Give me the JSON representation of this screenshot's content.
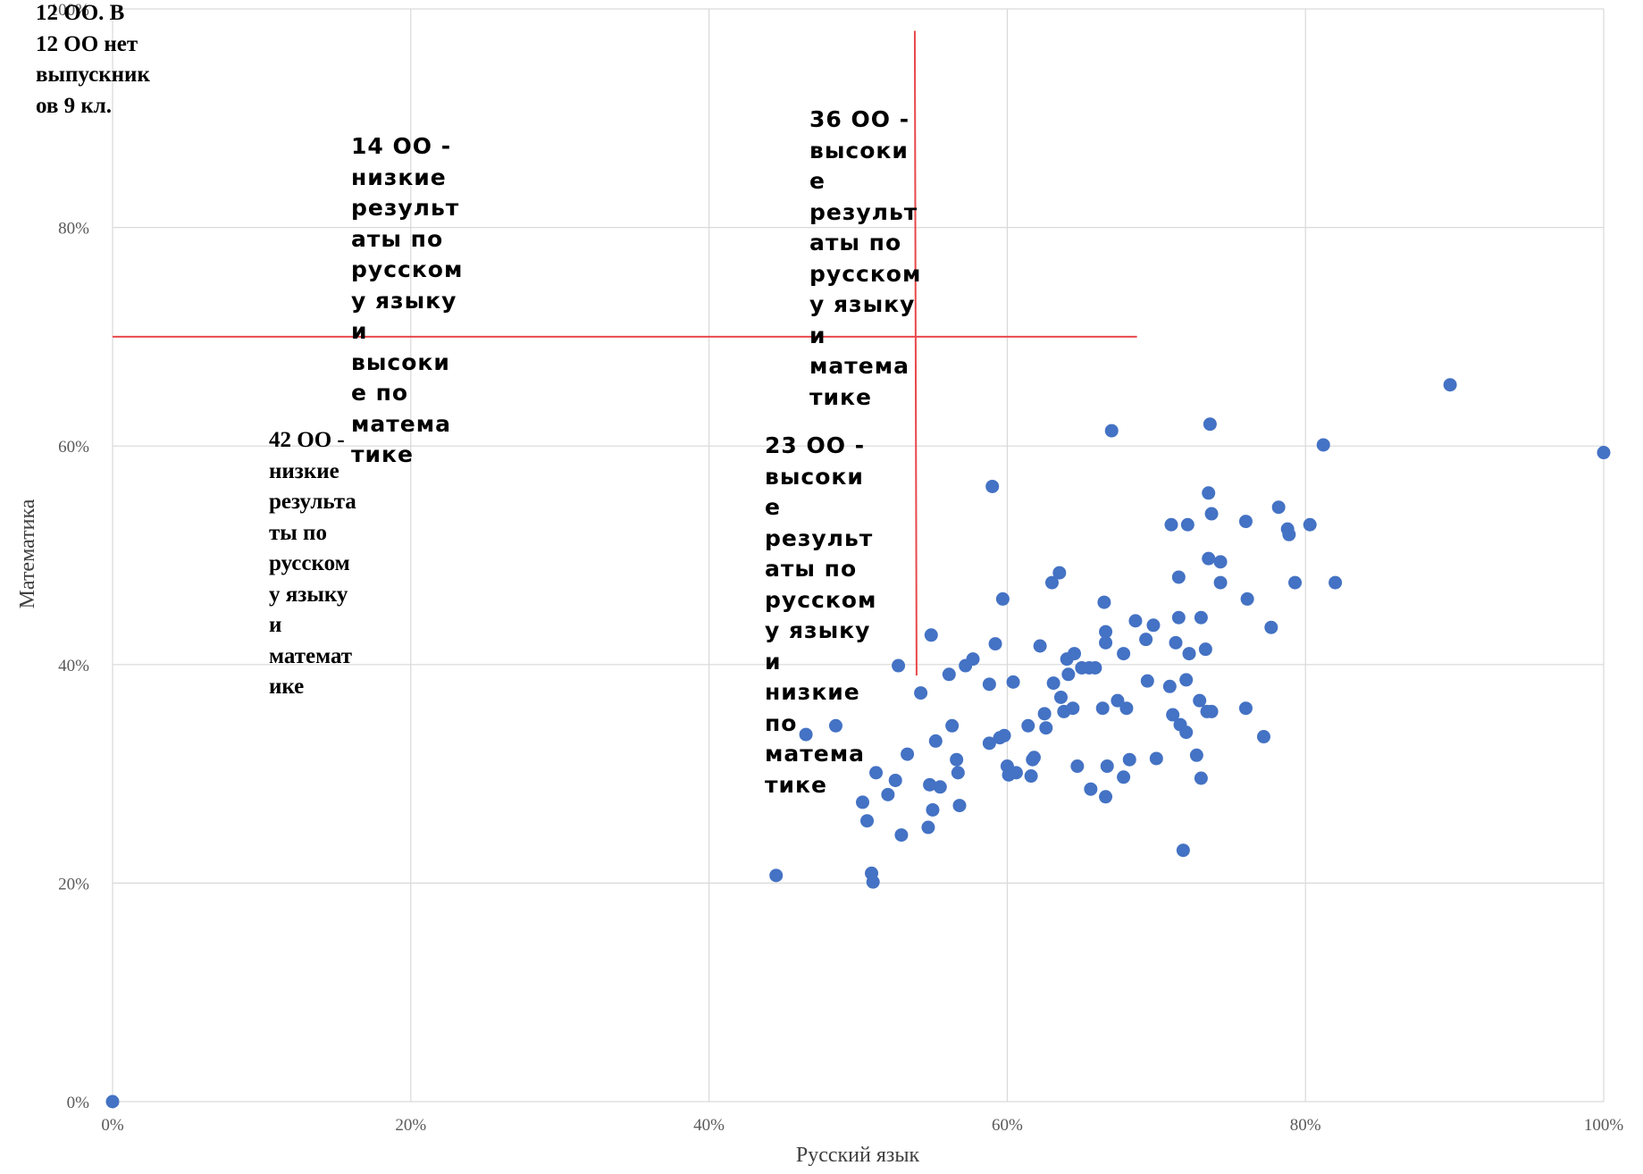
{
  "chart_data": {
    "type": "scatter",
    "xlabel": "Русский язык",
    "ylabel": "Математика",
    "xlim": [
      0,
      1
    ],
    "ylim": [
      0,
      1
    ],
    "x_ticks": [
      "0%",
      "20%",
      "40%",
      "60%",
      "80%",
      "100%"
    ],
    "y_ticks": [
      "0%",
      "20%",
      "40%",
      "60%",
      "80%",
      "100%"
    ],
    "grid": true,
    "marker_color": "#4472c4",
    "reference_line_color": "#e8484b",
    "reference_lines": {
      "horizontal": {
        "y": 0.7,
        "x_from": 0.0,
        "x_to": 0.687
      },
      "vertical": {
        "x": 0.538,
        "y_from": 0.39,
        "y_to": 0.98
      }
    },
    "annotations": [
      {
        "id": "top-left",
        "text": "12 ОО. В\n12 ОО нет\nвыпускник\nов 9 кл."
      },
      {
        "id": "upper-left",
        "text": "14 ОО -\nнизкие\nрезульт\nаты по\nрусском\nу языку\nи\nвысоки\nе по\nматема\nтике"
      },
      {
        "id": "upper-right",
        "text": "36 ОО -\nвысоки\nе\nрезульт\nаты по\nрусском\nу языку\nи\nматема\nтике"
      },
      {
        "id": "lower-left",
        "text": "42 ОО -\nнизкие\nрезульта\nты по\nрусском\nу языку\nи\nматемат\nике"
      },
      {
        "id": "lower-right",
        "text": "23 ОО -\nвысоки\nе\nрезульт\nаты по\nрусском\nу языку\nи\nнизкие\nпо\nматема\nтике"
      }
    ],
    "series": [
      {
        "points": [
          [
            0.0,
            0.0
          ],
          [
            0.445,
            0.207
          ],
          [
            0.465,
            0.336
          ],
          [
            0.485,
            0.344
          ],
          [
            0.503,
            0.274
          ],
          [
            0.506,
            0.257
          ],
          [
            0.509,
            0.209
          ],
          [
            0.51,
            0.201
          ],
          [
            0.512,
            0.301
          ],
          [
            0.52,
            0.281
          ],
          [
            0.525,
            0.294
          ],
          [
            0.527,
            0.399
          ],
          [
            0.529,
            0.244
          ],
          [
            0.533,
            0.318
          ],
          [
            0.542,
            0.374
          ],
          [
            0.547,
            0.251
          ],
          [
            0.548,
            0.29
          ],
          [
            0.549,
            0.427
          ],
          [
            0.55,
            0.267
          ],
          [
            0.552,
            0.33
          ],
          [
            0.555,
            0.288
          ],
          [
            0.561,
            0.391
          ],
          [
            0.563,
            0.344
          ],
          [
            0.566,
            0.313
          ],
          [
            0.567,
            0.301
          ],
          [
            0.568,
            0.271
          ],
          [
            0.572,
            0.399
          ],
          [
            0.577,
            0.405
          ],
          [
            0.588,
            0.328
          ],
          [
            0.588,
            0.382
          ],
          [
            0.59,
            0.563
          ],
          [
            0.592,
            0.419
          ],
          [
            0.595,
            0.333
          ],
          [
            0.597,
            0.46
          ],
          [
            0.598,
            0.335
          ],
          [
            0.6,
            0.307
          ],
          [
            0.601,
            0.299
          ],
          [
            0.604,
            0.384
          ],
          [
            0.606,
            0.301
          ],
          [
            0.614,
            0.344
          ],
          [
            0.616,
            0.298
          ],
          [
            0.617,
            0.313
          ],
          [
            0.618,
            0.315
          ],
          [
            0.622,
            0.417
          ],
          [
            0.625,
            0.355
          ],
          [
            0.626,
            0.342
          ],
          [
            0.63,
            0.475
          ],
          [
            0.631,
            0.383
          ],
          [
            0.635,
            0.484
          ],
          [
            0.636,
            0.37
          ],
          [
            0.638,
            0.357
          ],
          [
            0.64,
            0.405
          ],
          [
            0.641,
            0.391
          ],
          [
            0.644,
            0.36
          ],
          [
            0.645,
            0.41
          ],
          [
            0.647,
            0.307
          ],
          [
            0.65,
            0.397
          ],
          [
            0.655,
            0.397
          ],
          [
            0.656,
            0.286
          ],
          [
            0.659,
            0.397
          ],
          [
            0.664,
            0.36
          ],
          [
            0.665,
            0.457
          ],
          [
            0.666,
            0.279
          ],
          [
            0.666,
            0.43
          ],
          [
            0.666,
            0.42
          ],
          [
            0.667,
            0.307
          ],
          [
            0.67,
            0.614
          ],
          [
            0.674,
            0.367
          ],
          [
            0.678,
            0.297
          ],
          [
            0.678,
            0.41
          ],
          [
            0.68,
            0.36
          ],
          [
            0.682,
            0.313
          ],
          [
            0.686,
            0.44
          ],
          [
            0.693,
            0.423
          ],
          [
            0.694,
            0.385
          ],
          [
            0.698,
            0.436
          ],
          [
            0.7,
            0.314
          ],
          [
            0.709,
            0.38
          ],
          [
            0.71,
            0.528
          ],
          [
            0.711,
            0.354
          ],
          [
            0.713,
            0.42
          ],
          [
            0.715,
            0.443
          ],
          [
            0.715,
            0.48
          ],
          [
            0.716,
            0.345
          ],
          [
            0.718,
            0.23
          ],
          [
            0.72,
            0.386
          ],
          [
            0.72,
            0.338
          ],
          [
            0.721,
            0.528
          ],
          [
            0.722,
            0.41
          ],
          [
            0.727,
            0.317
          ],
          [
            0.729,
            0.367
          ],
          [
            0.73,
            0.296
          ],
          [
            0.73,
            0.443
          ],
          [
            0.733,
            0.414
          ],
          [
            0.734,
            0.357
          ],
          [
            0.735,
            0.557
          ],
          [
            0.735,
            0.497
          ],
          [
            0.736,
            0.62
          ],
          [
            0.737,
            0.538
          ],
          [
            0.737,
            0.357
          ],
          [
            0.743,
            0.494
          ],
          [
            0.743,
            0.475
          ],
          [
            0.76,
            0.531
          ],
          [
            0.76,
            0.36
          ],
          [
            0.761,
            0.46
          ],
          [
            0.772,
            0.334
          ],
          [
            0.777,
            0.434
          ],
          [
            0.782,
            0.544
          ],
          [
            0.788,
            0.524
          ],
          [
            0.789,
            0.519
          ],
          [
            0.793,
            0.475
          ],
          [
            0.803,
            0.528
          ],
          [
            0.812,
            0.601
          ],
          [
            0.82,
            0.475
          ],
          [
            0.897,
            0.656
          ],
          [
            1.0,
            0.594
          ]
        ]
      }
    ]
  }
}
